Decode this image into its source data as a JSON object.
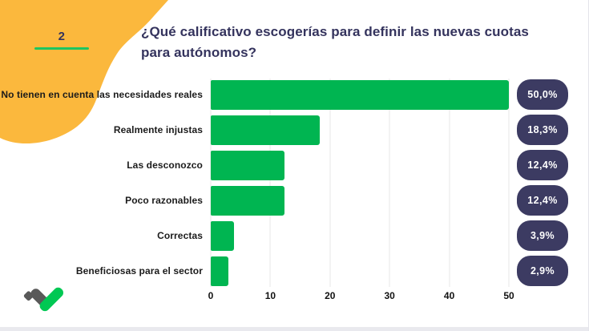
{
  "slide": {
    "number": "2",
    "title_line1": "¿Qué calificativo escogerías para definir las nuevas cuotas",
    "title_line2": "para autónomos?"
  },
  "colors": {
    "orange_blob": "#FBB83D",
    "bar_green": "#00B551",
    "underline_green": "#1DC560",
    "navy": "#3C3B62",
    "title_navy": "#34335D",
    "label_black": "#1B1B1B",
    "gridline": "#E7E7E7",
    "logo_gray": "#595959",
    "logo_green": "#00C853",
    "bottom_strip": "#E9E9EE"
  },
  "icons": {
    "logo": "checkmark-logo",
    "blob": "orange-blob-shape"
  },
  "chart_data": {
    "type": "bar",
    "orientation": "horizontal",
    "title": "¿Qué calificativo escogerías para definir las nuevas cuotas para autónomos?",
    "categories": [
      "No tienen en cuenta las necesidades reales",
      "Realmente injustas",
      "Las desconozco",
      "Poco razonables",
      "Correctas",
      "Beneficiosas para el sector"
    ],
    "values": [
      50.0,
      18.3,
      12.4,
      12.4,
      3.9,
      2.9
    ],
    "value_labels": [
      "50,0%",
      "18,3%",
      "12,4%",
      "12,4%",
      "3,9%",
      "2,9%"
    ],
    "xlabel": "",
    "ylabel": "",
    "xlim": [
      0,
      50
    ],
    "x_ticks": [
      0,
      10,
      20,
      30,
      40,
      50
    ],
    "grid": true,
    "legend": false,
    "bar_color": "#00B551"
  }
}
